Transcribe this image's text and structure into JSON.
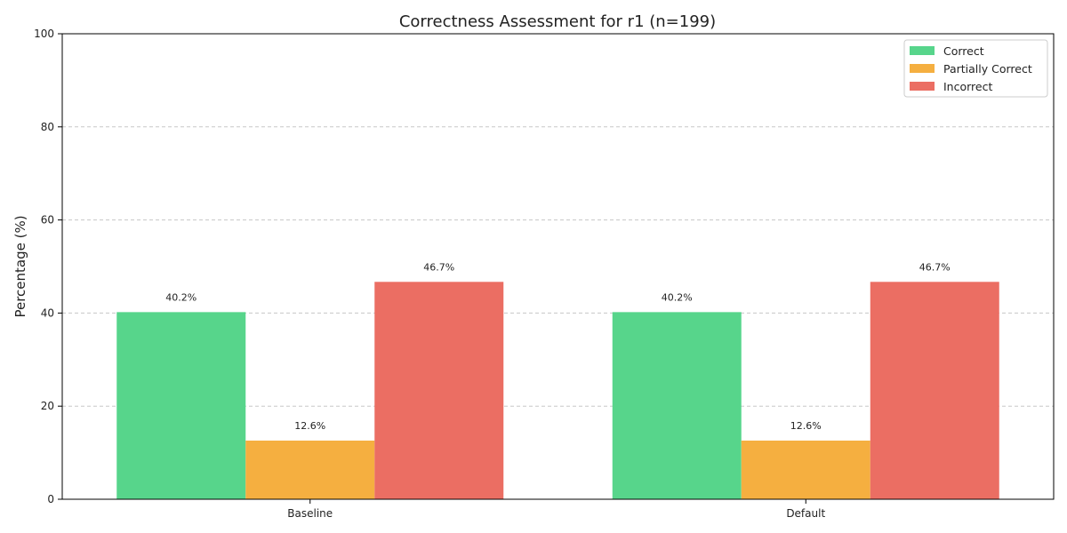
{
  "chart_data": {
    "type": "bar",
    "title": "Correctness Assessment for r1 (n=199)",
    "xlabel": "",
    "ylabel": "Percentage (%)",
    "ylim": [
      0,
      100
    ],
    "yticks": [
      0,
      20,
      40,
      60,
      80,
      100
    ],
    "grid": "y-dashed",
    "legend_position": "top-right",
    "categories": [
      "Baseline",
      "Default"
    ],
    "series": [
      {
        "name": "Correct",
        "color": "#57d58b",
        "values": [
          40.2,
          40.2
        ],
        "labels": [
          "40.2%",
          "40.2%"
        ]
      },
      {
        "name": "Partially Correct",
        "color": "#f5af40",
        "values": [
          12.6,
          12.6
        ],
        "labels": [
          "12.6%",
          "12.6%"
        ]
      },
      {
        "name": "Incorrect",
        "color": "#eb6e63",
        "values": [
          46.7,
          46.7
        ],
        "labels": [
          "46.7%",
          "46.7%"
        ]
      }
    ]
  }
}
